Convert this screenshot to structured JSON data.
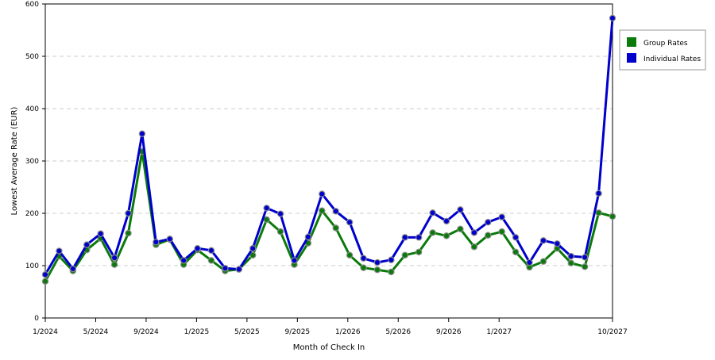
{
  "chart_data": {
    "type": "line",
    "title": "",
    "xlabel": "Month of Check In",
    "ylabel": "Lowest Average Rate (EUR)",
    "ylim": [
      0,
      600
    ],
    "yticks": [
      "0",
      "100",
      "200",
      "300",
      "400",
      "500",
      "600"
    ],
    "x_months": [
      "1/2024",
      "2/2024",
      "3/2024",
      "4/2024",
      "5/2024",
      "6/2024",
      "7/2024",
      "8/2024",
      "9/2024",
      "10/2024",
      "11/2024",
      "12/2024",
      "1/2025",
      "2/2025",
      "3/2025",
      "4/2025",
      "5/2025",
      "6/2025",
      "7/2025",
      "8/2025",
      "9/2025",
      "10/2025",
      "11/2025",
      "12/2025",
      "1/2026",
      "2/2026",
      "3/2026",
      "4/2026",
      "5/2026",
      "6/2026",
      "7/2026",
      "8/2026",
      "9/2026",
      "10/2026",
      "11/2026",
      "12/2026",
      "1/2027",
      "2/2027",
      "3/2027",
      "4/2027",
      "5/2027",
      "6/2027",
      "7/2027",
      "8/2027",
      "9/2027",
      "10/2027"
    ],
    "xtick_labels": [
      {
        "index": 0,
        "label": "1/2024"
      },
      {
        "index": 4,
        "label": "5/2024"
      },
      {
        "index": 8,
        "label": "9/2024"
      },
      {
        "index": 12,
        "label": "1/2025"
      },
      {
        "index": 16,
        "label": "5/2025"
      },
      {
        "index": 20,
        "label": "9/2025"
      },
      {
        "index": 24,
        "label": "1/2026"
      },
      {
        "index": 28,
        "label": "5/2026"
      },
      {
        "index": 32,
        "label": "9/2026"
      },
      {
        "index": 36,
        "label": "1/2027"
      },
      {
        "index": 45,
        "label": "10/2027"
      }
    ],
    "grid": "horizontal dashed",
    "legend_position": "top-right",
    "series": [
      {
        "name": "Group Rates",
        "color": "#0a7a0a",
        "values": [
          70,
          118,
          90,
          130,
          152,
          102,
          162,
          318,
          140,
          150,
          102,
          130,
          110,
          90,
          93,
          120,
          188,
          165,
          102,
          143,
          205,
          172,
          120,
          96,
          92,
          88,
          120,
          126,
          163,
          157,
          170,
          136,
          158,
          165,
          126,
          97,
          108,
          133,
          105,
          98,
          201,
          194
        ]
      },
      {
        "name": "Individual Rates",
        "color": "#0000cc",
        "values": [
          83,
          128,
          94,
          140,
          161,
          115,
          200,
          352,
          145,
          151,
          110,
          133,
          129,
          95,
          93,
          133,
          210,
          199,
          110,
          155,
          237,
          204,
          183,
          114,
          106,
          111,
          154,
          154,
          201,
          185,
          207,
          163,
          183,
          193,
          154,
          106,
          148,
          142,
          118,
          116,
          238,
          573
        ]
      }
    ]
  }
}
